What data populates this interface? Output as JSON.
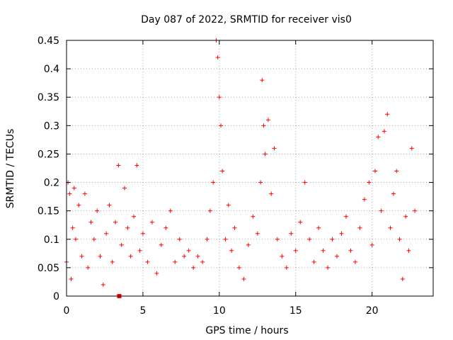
{
  "chart_data": {
    "type": "scatter",
    "title": "Day 087 of 2022, SRMTID for receiver vis0",
    "xlabel": "GPS time / hours",
    "ylabel": "SRMTID / TECUs",
    "xlim": [
      0,
      24
    ],
    "ylim": [
      0,
      0.45
    ],
    "xticks": [
      0,
      5,
      10,
      15,
      20
    ],
    "xtick_labels": [
      "0",
      "5",
      "10",
      "15",
      "20"
    ],
    "yticks": [
      0,
      0.05,
      0.1,
      0.15,
      0.2,
      0.25,
      0.3,
      0.35,
      0.4,
      0.45
    ],
    "ytick_labels": [
      "0",
      "0.05",
      "0.1",
      "0.15",
      "0.2",
      "0.25",
      "0.3",
      "0.35",
      "0.4",
      "0.45"
    ],
    "grid": true,
    "marker": "+",
    "color": "#ff0000",
    "series": [
      {
        "name": "vis0",
        "x": [
          0.0,
          0.1,
          0.2,
          0.3,
          0.4,
          0.5,
          0.6,
          0.8,
          1.0,
          1.2,
          1.4,
          1.6,
          1.8,
          2.0,
          2.2,
          2.4,
          2.6,
          2.8,
          3.0,
          3.2,
          3.4,
          3.6,
          3.8,
          4.0,
          4.2,
          4.4,
          4.6,
          4.8,
          5.0,
          5.3,
          5.6,
          5.9,
          6.2,
          6.5,
          6.8,
          7.1,
          7.4,
          7.7,
          8.0,
          8.3,
          8.6,
          8.9,
          9.2,
          9.4,
          9.6,
          9.8,
          9.9,
          10.0,
          10.1,
          10.2,
          10.4,
          10.6,
          10.8,
          11.0,
          11.3,
          11.6,
          11.9,
          12.2,
          12.5,
          12.7,
          12.8,
          12.9,
          13.0,
          13.2,
          13.4,
          13.6,
          13.8,
          14.1,
          14.4,
          14.7,
          15.0,
          15.3,
          15.6,
          15.9,
          16.2,
          16.5,
          16.8,
          17.1,
          17.4,
          17.7,
          18.0,
          18.3,
          18.6,
          18.9,
          19.2,
          19.5,
          19.8,
          20.0,
          20.2,
          20.4,
          20.6,
          20.8,
          21.0,
          21.2,
          21.4,
          21.6,
          21.8,
          22.0,
          22.2,
          22.4,
          22.6,
          22.8
        ],
        "y": [
          0.06,
          0.2,
          0.18,
          0.03,
          0.12,
          0.19,
          0.1,
          0.16,
          0.07,
          0.18,
          0.05,
          0.13,
          0.1,
          0.15,
          0.07,
          0.02,
          0.11,
          0.16,
          0.06,
          0.13,
          0.23,
          0.09,
          0.19,
          0.12,
          0.07,
          0.14,
          0.23,
          0.08,
          0.11,
          0.06,
          0.13,
          0.04,
          0.09,
          0.12,
          0.15,
          0.06,
          0.1,
          0.07,
          0.08,
          0.05,
          0.07,
          0.06,
          0.1,
          0.15,
          0.2,
          0.45,
          0.42,
          0.35,
          0.3,
          0.22,
          0.1,
          0.16,
          0.08,
          0.12,
          0.05,
          0.03,
          0.09,
          0.14,
          0.11,
          0.2,
          0.38,
          0.3,
          0.25,
          0.31,
          0.18,
          0.26,
          0.1,
          0.07,
          0.05,
          0.11,
          0.08,
          0.13,
          0.2,
          0.1,
          0.06,
          0.12,
          0.08,
          0.05,
          0.1,
          0.07,
          0.11,
          0.14,
          0.08,
          0.06,
          0.12,
          0.17,
          0.2,
          0.09,
          0.22,
          0.28,
          0.15,
          0.29,
          0.32,
          0.12,
          0.18,
          0.22,
          0.1,
          0.03,
          0.14,
          0.08,
          0.26,
          0.15
        ]
      }
    ],
    "extra_marker": {
      "x": 3.45,
      "y": 0.0,
      "shape": "square"
    }
  }
}
